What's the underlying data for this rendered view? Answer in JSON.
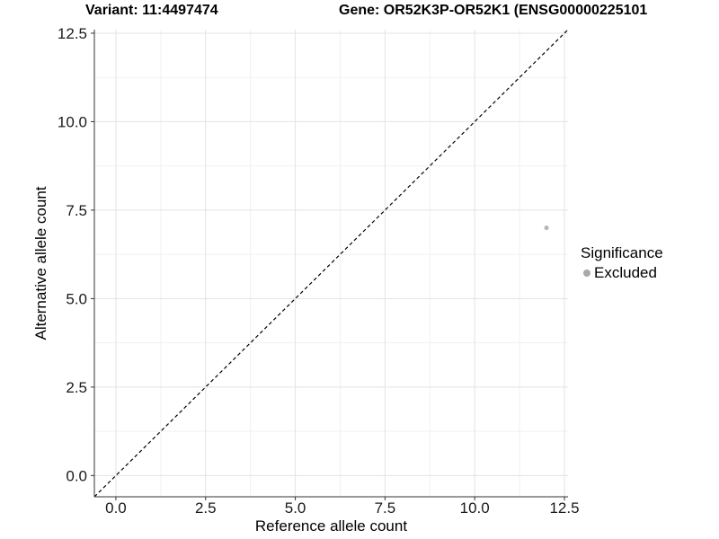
{
  "title_left": "Variant: 11:4497474",
  "title_right": "Gene: OR52K3P-OR52K1 (ENSG00000225101",
  "chart_data": {
    "type": "scatter",
    "xlabel": "Reference allele count",
    "ylabel": "Alternative allele count",
    "xlim": [
      -0.6,
      12.6
    ],
    "ylim": [
      -0.6,
      12.6
    ],
    "x_ticks": [
      0.0,
      2.5,
      5.0,
      7.5,
      10.0,
      12.5
    ],
    "y_ticks": [
      0.0,
      2.5,
      5.0,
      7.5,
      10.0,
      12.5
    ],
    "x_tick_labels": [
      "0.0",
      "2.5",
      "5.0",
      "7.5",
      "10.0",
      "12.5"
    ],
    "y_tick_labels": [
      "0.0",
      "2.5",
      "5.0",
      "7.5",
      "10.0",
      "12.5"
    ],
    "minor_x_ticks": [
      1.25,
      3.75,
      6.25,
      8.75,
      11.25
    ],
    "minor_y_ticks": [
      1.25,
      3.75,
      6.25,
      8.75,
      11.25
    ],
    "grid": true,
    "series": [
      {
        "name": "Excluded",
        "color": "#b4b4b4",
        "point_radius": 2.5,
        "points": [
          {
            "x": 12,
            "y": 7
          }
        ]
      }
    ],
    "reference_line": {
      "type": "identity y=x",
      "style": "dashed",
      "color": "#000000"
    },
    "legend": {
      "position": "right",
      "title": "Significance",
      "items": [
        {
          "label": "Excluded",
          "color": "#a9a9a9"
        }
      ]
    }
  },
  "colors": {
    "background": "#ffffff",
    "grid_major": "#e3e3e3",
    "grid_minor": "#f0f0f0",
    "axis_line": "#333333",
    "tick_text": "#1a1a1a",
    "title_text": "#000000"
  }
}
